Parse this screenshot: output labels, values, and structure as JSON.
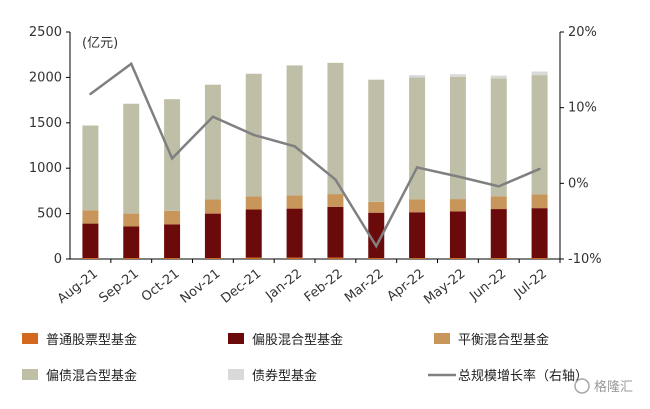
{
  "chart_data": {
    "type": "bar",
    "stacked": true,
    "unit_left": "(亿元)",
    "categories": [
      "Aug-21",
      "Sep-21",
      "Oct-21",
      "Nov-21",
      "Dec-21",
      "Jan-22",
      "Feb-22",
      "Mar-22",
      "Apr-22",
      "May-22",
      "Jun-22",
      "Jul-22"
    ],
    "ylim_left": [
      0,
      2500
    ],
    "yticks_left": [
      "0",
      "500",
      "1000",
      "1500",
      "2000",
      "2500"
    ],
    "ylim_right": [
      -0.1,
      0.2
    ],
    "yticks_right": [
      "-10%",
      "0%",
      "10%",
      "20%"
    ],
    "grid": false,
    "legend_position": "bottom",
    "series": [
      {
        "name": "普通股票型基金",
        "color": "#d2691e",
        "axis": "left",
        "kind": "bar",
        "values": [
          10,
          10,
          10,
          10,
          15,
          15,
          15,
          10,
          10,
          10,
          10,
          10
        ]
      },
      {
        "name": "偏股混合型基金",
        "color": "#6b0a0a",
        "axis": "left",
        "kind": "bar",
        "values": [
          380,
          350,
          370,
          490,
          530,
          540,
          560,
          500,
          505,
          515,
          540,
          550
        ]
      },
      {
        "name": "平衡混合型基金",
        "color": "#c8965a",
        "axis": "left",
        "kind": "bar",
        "values": [
          145,
          140,
          150,
          155,
          145,
          145,
          140,
          120,
          140,
          135,
          140,
          150
        ]
      },
      {
        "name": "偏债混合型基金",
        "color": "#bfbfa8",
        "axis": "left",
        "kind": "bar",
        "values": [
          935,
          1210,
          1230,
          1265,
          1350,
          1430,
          1445,
          1345,
          1345,
          1345,
          1300,
          1315
        ]
      },
      {
        "name": "债券型基金",
        "color": "#d9d9d9",
        "axis": "left",
        "kind": "bar",
        "values": [
          0,
          0,
          0,
          0,
          0,
          5,
          0,
          0,
          25,
          30,
          30,
          40
        ]
      },
      {
        "name": "总规模增长率（右轴）",
        "color": "#808080",
        "axis": "right",
        "kind": "line",
        "values": [
          0.118,
          0.158,
          0.033,
          0.088,
          0.064,
          0.049,
          0.005,
          -0.083,
          0.021,
          0.009,
          -0.004,
          0.019
        ]
      }
    ]
  },
  "watermark": "格隆汇"
}
